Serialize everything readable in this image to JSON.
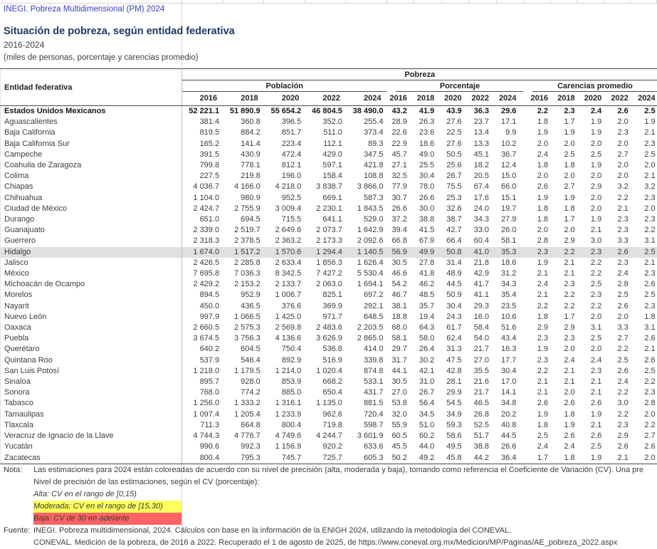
{
  "document": {
    "app_line": "INEGI. Pobreza Multidimensional (PM) 2024",
    "title": "Situación de pobreza, según entidad federativa",
    "period": "2016-2024",
    "units": "(miles de personas, porcentaje y carencias promedio)"
  },
  "colors": {
    "app_line_blue": "#3C3CC0",
    "title_navy": "#1F3864",
    "row_highlight_gray": "#E0E0E0",
    "moderada_bg_yellow": "#FFFF5E",
    "baja_bg_red": "#FF6363"
  },
  "table": {
    "entity_header": "Entidad federativa",
    "pobreza_header": "Pobreza",
    "groups": [
      "Población",
      "Porcentaje",
      "Carencias promedio"
    ],
    "year_headers": [
      "2016",
      "2018",
      "2020",
      "2022",
      "2024"
    ],
    "rows": [
      {
        "name": "Estados Unidos Mexicanos",
        "bold": true,
        "highlight": false,
        "pob": [
          "52 221.1",
          "51 890.9",
          "55 654.2",
          "46 804.5",
          "38 490.0"
        ],
        "pct": [
          "43.2",
          "41.9",
          "43.9",
          "36.3",
          "29.6"
        ],
        "car": [
          "2.2",
          "2.3",
          "2.4",
          "2.6",
          "2.5"
        ]
      },
      {
        "name": "Aguascalientes",
        "bold": false,
        "highlight": false,
        "pob": [
          "381.4",
          "360.8",
          "396.5",
          "352.0",
          "255.4"
        ],
        "pct": [
          "28.9",
          "26.3",
          "27.6",
          "23.7",
          "17.1"
        ],
        "car": [
          "1.8",
          "1.7",
          "1.9",
          "2.0",
          "1.9"
        ]
      },
      {
        "name": "Baja California",
        "bold": false,
        "highlight": false,
        "pob": [
          "819.5",
          "884.2",
          "851.7",
          "511.0",
          "373.4"
        ],
        "pct": [
          "22.6",
          "23.6",
          "22.5",
          "13.4",
          "9.9"
        ],
        "car": [
          "1.9",
          "1.9",
          "1.9",
          "2.3",
          "2.1"
        ]
      },
      {
        "name": "Baja California Sur",
        "bold": false,
        "highlight": false,
        "pob": [
          "165.2",
          "141.4",
          "223.4",
          "112.1",
          "89.3"
        ],
        "pct": [
          "22.9",
          "18.6",
          "27.6",
          "13.3",
          "10.2"
        ],
        "car": [
          "2.0",
          "2.0",
          "2.0",
          "2.0",
          "2.3"
        ]
      },
      {
        "name": "Campeche",
        "bold": false,
        "highlight": false,
        "pob": [
          "391.5",
          "430.9",
          "472.4",
          "429.0",
          "347.5"
        ],
        "pct": [
          "45.7",
          "49.0",
          "50.5",
          "45.1",
          "36.7"
        ],
        "car": [
          "2.4",
          "2.5",
          "2.5",
          "2.7",
          "2.5"
        ]
      },
      {
        "name": "Coahuila de Zaragoza",
        "bold": false,
        "highlight": false,
        "pob": [
          "799.8",
          "778.1",
          "812.1",
          "597.1",
          "421.8"
        ],
        "pct": [
          "27.1",
          "25.5",
          "25.6",
          "18.2",
          "12.4"
        ],
        "car": [
          "1.8",
          "1.8",
          "1.9",
          "2.0",
          "2.0"
        ]
      },
      {
        "name": "Colima",
        "bold": false,
        "highlight": false,
        "pob": [
          "227.5",
          "219.8",
          "196.0",
          "158.4",
          "108.8"
        ],
        "pct": [
          "32.5",
          "30.4",
          "26.7",
          "20.5",
          "15.0"
        ],
        "car": [
          "2.0",
          "2.0",
          "2.0",
          "2.0",
          "2.1"
        ]
      },
      {
        "name": "Chiapas",
        "bold": false,
        "highlight": false,
        "pob": [
          "4 036.7",
          "4 166.0",
          "4 218.0",
          "3 838.7",
          "3 866.0"
        ],
        "pct": [
          "77.9",
          "78.0",
          "75.5",
          "67.4",
          "66.0"
        ],
        "car": [
          "2.6",
          "2.7",
          "2.9",
          "3.2",
          "3.2"
        ]
      },
      {
        "name": "Chihuahua",
        "bold": false,
        "highlight": false,
        "pob": [
          "1 104.0",
          "980.9",
          "952.5",
          "669.1",
          "587.3"
        ],
        "pct": [
          "30.7",
          "26.6",
          "25.3",
          "17.6",
          "15.1"
        ],
        "car": [
          "1.9",
          "1.9",
          "2.0",
          "2.2",
          "2.3"
        ]
      },
      {
        "name": "Ciudad de México",
        "bold": false,
        "highlight": false,
        "pob": [
          "2 424.7",
          "2 755.9",
          "3 009.4",
          "2 230.1",
          "1 843.5"
        ],
        "pct": [
          "26.6",
          "30.0",
          "32.6",
          "24.0",
          "19.7"
        ],
        "car": [
          "1.8",
          "1.8",
          "2.0",
          "2.1",
          "2.0"
        ]
      },
      {
        "name": "Durango",
        "bold": false,
        "highlight": false,
        "pob": [
          "651.0",
          "694.5",
          "715.5",
          "641.1",
          "529.0"
        ],
        "pct": [
          "37.2",
          "38.8",
          "38.7",
          "34.3",
          "27.9"
        ],
        "car": [
          "1.8",
          "1.7",
          "1.9",
          "2.3",
          "2.3"
        ]
      },
      {
        "name": "Guanajuato",
        "bold": false,
        "highlight": false,
        "pob": [
          "2 339.0",
          "2 519.7",
          "2 649.6",
          "2 073.7",
          "1 642.9"
        ],
        "pct": [
          "39.4",
          "41.5",
          "42.7",
          "33.0",
          "26.0"
        ],
        "car": [
          "2.0",
          "2.0",
          "2.1",
          "2.3",
          "2.2"
        ]
      },
      {
        "name": "Guerrero",
        "bold": false,
        "highlight": false,
        "pob": [
          "2 318.3",
          "2 378.5",
          "2 363.2",
          "2 173.3",
          "2 092.6"
        ],
        "pct": [
          "66.8",
          "67.9",
          "66.4",
          "60.4",
          "58.1"
        ],
        "car": [
          "2.8",
          "2.9",
          "3.0",
          "3.3",
          "3.1"
        ]
      },
      {
        "name": "Hidalgo",
        "bold": false,
        "highlight": true,
        "pob": [
          "1 674.0",
          "1 517.2",
          "1 570.6",
          "1 294.4",
          "1 140.5"
        ],
        "pct": [
          "56.9",
          "49.9",
          "50.8",
          "41.0",
          "35.3"
        ],
        "car": [
          "2.3",
          "2.2",
          "2.3",
          "2.6",
          "2.5"
        ]
      },
      {
        "name": "Jalisco",
        "bold": false,
        "highlight": false,
        "pob": [
          "2 426.5",
          "2 285.8",
          "2 633.4",
          "1 856.3",
          "1 626.4"
        ],
        "pct": [
          "30.5",
          "27.8",
          "31.4",
          "21.8",
          "18.6"
        ],
        "car": [
          "1.9",
          "2.1",
          "2.2",
          "2.3",
          "2.1"
        ]
      },
      {
        "name": "México",
        "bold": false,
        "highlight": false,
        "pob": [
          "7 695.8",
          "7 036.3",
          "8 342.5",
          "7 427.2",
          "5 530.4"
        ],
        "pct": [
          "46.6",
          "41.8",
          "48.9",
          "42.9",
          "31.2"
        ],
        "car": [
          "2.1",
          "2.1",
          "2.2",
          "2.4",
          "2.3"
        ]
      },
      {
        "name": "Michoacán de Ocampo",
        "bold": false,
        "highlight": false,
        "pob": [
          "2 429.2",
          "2 153.2",
          "2 133.7",
          "2 063.0",
          "1 694.1"
        ],
        "pct": [
          "54.2",
          "46.2",
          "44.5",
          "41.7",
          "34.3"
        ],
        "car": [
          "2.4",
          "2.3",
          "2.5",
          "2.8",
          "2.6"
        ]
      },
      {
        "name": "Morelos",
        "bold": false,
        "highlight": false,
        "pob": [
          "894.5",
          "952.9",
          "1 006.7",
          "825.1",
          "697.2"
        ],
        "pct": [
          "46.7",
          "48.5",
          "50.9",
          "41.1",
          "35.4"
        ],
        "car": [
          "2.1",
          "2.2",
          "2.3",
          "2.5",
          "2.5"
        ]
      },
      {
        "name": "Nayarit",
        "bold": false,
        "highlight": false,
        "pob": [
          "450.0",
          "436.5",
          "376.6",
          "369.9",
          "292.1"
        ],
        "pct": [
          "38.1",
          "35.7",
          "30.4",
          "29.3",
          "23.5"
        ],
        "car": [
          "2.2",
          "2.2",
          "2.2",
          "2.6",
          "2.3"
        ]
      },
      {
        "name": "Nuevo León",
        "bold": false,
        "highlight": false,
        "pob": [
          "997.9",
          "1 066.5",
          "1 425.0",
          "971.7",
          "648.5"
        ],
        "pct": [
          "18.8",
          "19.4",
          "24.3",
          "16.0",
          "10.6"
        ],
        "car": [
          "1.8",
          "1.7",
          "2.0",
          "2.0",
          "1.8"
        ]
      },
      {
        "name": "Oaxaca",
        "bold": false,
        "highlight": false,
        "pob": [
          "2 660.5",
          "2 575.3",
          "2 569.8",
          "2 483.6",
          "2 203.5"
        ],
        "pct": [
          "68.0",
          "64.3",
          "61.7",
          "58.4",
          "51.6"
        ],
        "car": [
          "2.9",
          "2.9",
          "3.1",
          "3.3",
          "3.1"
        ]
      },
      {
        "name": "Puebla",
        "bold": false,
        "highlight": false,
        "pob": [
          "3 674.5",
          "3 756.3",
          "4 136.6",
          "3 626.9",
          "2 865.0"
        ],
        "pct": [
          "58.1",
          "58.0",
          "62.4",
          "54.0",
          "43.4"
        ],
        "car": [
          "2.3",
          "2.3",
          "2.5",
          "2.7",
          "2.6"
        ]
      },
      {
        "name": "Querétaro",
        "bold": false,
        "highlight": false,
        "pob": [
          "640.2",
          "604.5",
          "750.4",
          "536.8",
          "414.0"
        ],
        "pct": [
          "29.7",
          "26.4",
          "31.3",
          "21.7",
          "16.3"
        ],
        "car": [
          "1.9",
          "2.0",
          "2.0",
          "2.2",
          "2.1"
        ]
      },
      {
        "name": "Quintana Roo",
        "bold": false,
        "highlight": false,
        "pob": [
          "537.9",
          "546.4",
          "892.9",
          "516.9",
          "339.8"
        ],
        "pct": [
          "31.7",
          "30.2",
          "47.5",
          "27.0",
          "17.7"
        ],
        "car": [
          "2.3",
          "2.4",
          "2.4",
          "2.5",
          "2.6"
        ]
      },
      {
        "name": "San Luis Potosí",
        "bold": false,
        "highlight": false,
        "pob": [
          "1 218.0",
          "1 179.5",
          "1 214.0",
          "1 020.4",
          "874.8"
        ],
        "pct": [
          "44.1",
          "42.1",
          "42.8",
          "35.5",
          "30.4"
        ],
        "car": [
          "2.2",
          "2.1",
          "2.3",
          "2.6",
          "2.5"
        ]
      },
      {
        "name": "Sinaloa",
        "bold": false,
        "highlight": false,
        "pob": [
          "895.7",
          "928.0",
          "853.9",
          "668.2",
          "533.1"
        ],
        "pct": [
          "30.5",
          "31.0",
          "28.1",
          "21.6",
          "17.0"
        ],
        "car": [
          "2.1",
          "2.1",
          "2.1",
          "2.4",
          "2.2"
        ]
      },
      {
        "name": "Sonora",
        "bold": false,
        "highlight": false,
        "pob": [
          "768.0",
          "774.2",
          "885.0",
          "650.4",
          "431.7"
        ],
        "pct": [
          "27.0",
          "26.7",
          "29.9",
          "21.7",
          "14.1"
        ],
        "car": [
          "2.1",
          "2.0",
          "2.1",
          "2.2",
          "2.3"
        ]
      },
      {
        "name": "Tabasco",
        "bold": false,
        "highlight": false,
        "pob": [
          "1 256.0",
          "1 333.2",
          "1 316.1",
          "1 135.0",
          "881.5"
        ],
        "pct": [
          "53.8",
          "56.4",
          "54.5",
          "46.5",
          "34.8"
        ],
        "car": [
          "2.6",
          "2.6",
          "2.6",
          "3.0",
          "2.8"
        ]
      },
      {
        "name": "Tamaulipas",
        "bold": false,
        "highlight": false,
        "pob": [
          "1 097.4",
          "1 205.4",
          "1 233.9",
          "962.6",
          "720.4"
        ],
        "pct": [
          "32.0",
          "34.5",
          "34.9",
          "26.8",
          "20.2"
        ],
        "car": [
          "1.9",
          "1.8",
          "1.9",
          "2.2",
          "2.0"
        ]
      },
      {
        "name": "Tlaxcala",
        "bold": false,
        "highlight": false,
        "pob": [
          "711.3",
          "664.8",
          "800.4",
          "719.8",
          "598.7"
        ],
        "pct": [
          "55.9",
          "51.0",
          "59.3",
          "52.5",
          "40.8"
        ],
        "car": [
          "1.8",
          "1.9",
          "2.1",
          "2.3",
          "2.2"
        ]
      },
      {
        "name": "Veracruz de Ignacio de la Llave",
        "bold": false,
        "highlight": false,
        "pob": [
          "4 744.3",
          "4 776.7",
          "4 749.6",
          "4 244.7",
          "3 601.9"
        ],
        "pct": [
          "60.5",
          "60.2",
          "58.6",
          "51.7",
          "44.5"
        ],
        "car": [
          "2.5",
          "2.6",
          "2.6",
          "2.9",
          "2.7"
        ]
      },
      {
        "name": "Yucatán",
        "bold": false,
        "highlight": false,
        "pob": [
          "990.6",
          "992.3",
          "1 156.9",
          "920.2",
          "633.6"
        ],
        "pct": [
          "45.5",
          "44.0",
          "49.5",
          "38.8",
          "26.6"
        ],
        "car": [
          "2.4",
          "2.4",
          "2.5",
          "2.6",
          "2.6"
        ]
      },
      {
        "name": "Zacatecas",
        "bold": false,
        "highlight": false,
        "pob": [
          "800.4",
          "795.3",
          "745.7",
          "725.7",
          "605.3"
        ],
        "pct": [
          "50.2",
          "49.2",
          "45.8",
          "44.2",
          "36.4"
        ],
        "car": [
          "1.7",
          "1.8",
          "1.9",
          "2.1",
          "2.0"
        ]
      }
    ]
  },
  "notes": {
    "nota_label": "Nota:",
    "line1": "Las estimaciones para 2024 están coloreadas de acuerdo con su nivel de precisión (alta, moderada y baja), tomando como referencia el Coeficiente de Variación (CV). Una pre",
    "line2": "Nivel de precisión de las estimaciones, según el CV (porcentaje):",
    "alta": "Alta: CV en el rango de [0,15)",
    "moderada": "Moderada: CV en el rango de [15,30)",
    "baja": "Baja: CV de 30 en adelante",
    "fuente_label": "Fuente:",
    "fuente1": "INEGI. Pobreza multidimensional, 2024. Cálculos con base en la información de la ENIGH 2024, utilizando la metodología del CONEVAL.",
    "fuente2": "CONEVAL. Medición de la pobreza, de 2016 a 2022. Recuperado el 1 de agosto de 2025, de https://www.coneval.org.mx/Medicion/MP/Paginas/AE_pobreza_2022.aspx"
  }
}
